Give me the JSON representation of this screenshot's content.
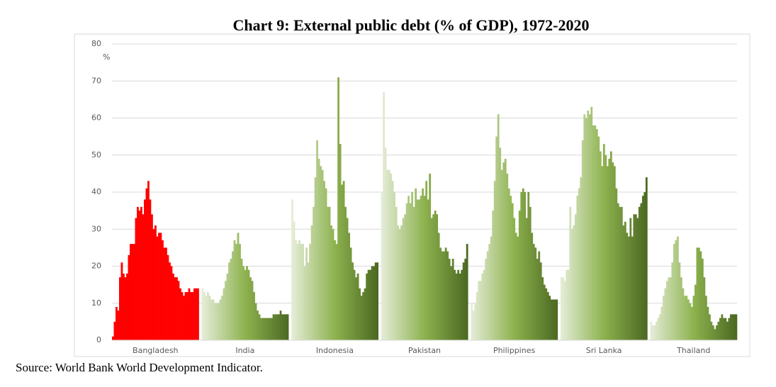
{
  "chart_data": {
    "type": "grouped_bar",
    "title": "Chart 9: External public debt (% of GDP), 1972-2020",
    "y_unit": "%",
    "source": "Source: World Bank World Development Indicator.",
    "ylim": [
      0,
      80
    ],
    "yticks": [
      0,
      10,
      20,
      30,
      40,
      50,
      60,
      70,
      80
    ],
    "grid": true,
    "series": [
      {
        "name": "Bangladesh",
        "colors": [
          "#ff0000"
        ],
        "values": [
          1,
          5,
          9,
          8,
          17,
          21,
          18,
          17,
          18,
          23,
          26,
          26,
          26,
          33,
          36,
          35,
          36,
          34,
          38,
          41,
          43,
          38,
          34,
          30,
          31,
          28,
          29,
          29,
          27,
          25,
          25,
          23,
          21,
          20,
          18,
          17,
          17,
          16,
          14,
          13,
          12,
          13,
          13,
          14,
          13,
          13,
          14,
          14,
          14
        ]
      },
      {
        "name": "India",
        "colors": [
          "#e4ecd6",
          "#8db24e",
          "#4d6a22"
        ],
        "values": [
          14,
          13,
          12,
          13,
          12,
          11,
          11,
          10,
          10,
          10,
          11,
          12,
          14,
          16,
          18,
          21,
          22,
          24,
          27,
          26,
          29,
          26,
          22,
          20,
          19,
          20,
          19,
          17,
          16,
          13,
          10,
          8,
          7,
          6,
          6,
          6,
          6,
          6,
          6,
          6,
          7,
          7,
          7,
          7,
          8,
          7,
          7,
          7,
          7
        ]
      },
      {
        "name": "Indonesia",
        "colors": [
          "#e4ecd6",
          "#8db24e",
          "#4d6a22"
        ],
        "values": [
          38,
          32,
          27,
          26,
          27,
          26,
          26,
          20,
          25,
          21,
          26,
          31,
          36,
          44,
          54,
          49,
          47,
          46,
          43,
          41,
          36,
          36,
          31,
          30,
          27,
          26,
          71,
          53,
          42,
          43,
          36,
          33,
          29,
          25,
          21,
          19,
          17,
          18,
          14,
          12,
          13,
          14,
          18,
          19,
          19,
          20,
          20,
          21,
          21
        ]
      },
      {
        "name": "Pakistan",
        "colors": [
          "#e4ecd6",
          "#8db24e",
          "#4d6a22"
        ],
        "values": [
          40,
          67,
          52,
          46,
          46,
          45,
          43,
          40,
          36,
          31,
          30,
          31,
          33,
          34,
          37,
          39,
          37,
          40,
          36,
          41,
          38,
          38,
          39,
          41,
          39,
          43,
          38,
          45,
          33,
          34,
          35,
          34,
          29,
          25,
          24,
          24,
          25,
          24,
          22,
          20,
          22,
          19,
          18,
          19,
          18,
          19,
          21,
          22,
          26
        ]
      },
      {
        "name": "Philippines",
        "colors": [
          "#e4ecd6",
          "#8db24e",
          "#4d6a22"
        ],
        "values": [
          10,
          8,
          10,
          13,
          16,
          16,
          18,
          19,
          22,
          24,
          26,
          28,
          35,
          43,
          55,
          61,
          52,
          46,
          48,
          49,
          45,
          41,
          39,
          37,
          33,
          29,
          28,
          35,
          40,
          41,
          40,
          33,
          40,
          36,
          29,
          26,
          25,
          22,
          24,
          21,
          17,
          15,
          14,
          13,
          12,
          11,
          11,
          11,
          11
        ]
      },
      {
        "name": "Sri Lanka",
        "colors": [
          "#e4ecd6",
          "#8db24e",
          "#4d6a22"
        ],
        "values": [
          17,
          17,
          16,
          19,
          19,
          36,
          30,
          31,
          34,
          39,
          41,
          44,
          54,
          61,
          60,
          62,
          61,
          63,
          58,
          58,
          57,
          55,
          51,
          47,
          53,
          50,
          47,
          49,
          51,
          48,
          47,
          41,
          37,
          36,
          36,
          31,
          32,
          29,
          28,
          33,
          28,
          34,
          34,
          33,
          36,
          37,
          39,
          40,
          44
        ]
      },
      {
        "name": "Thailand",
        "colors": [
          "#e4ecd6",
          "#8db24e",
          "#4d6a22"
        ],
        "values": [
          5,
          4,
          4,
          5,
          6,
          7,
          9,
          12,
          14,
          16,
          17,
          17,
          21,
          26,
          27,
          28,
          21,
          17,
          14,
          12,
          12,
          11,
          10,
          9,
          12,
          15,
          25,
          25,
          24,
          22,
          17,
          12,
          9,
          7,
          5,
          4,
          3,
          4,
          5,
          6,
          7,
          6,
          6,
          5,
          6,
          7,
          7,
          7,
          7
        ]
      }
    ]
  }
}
